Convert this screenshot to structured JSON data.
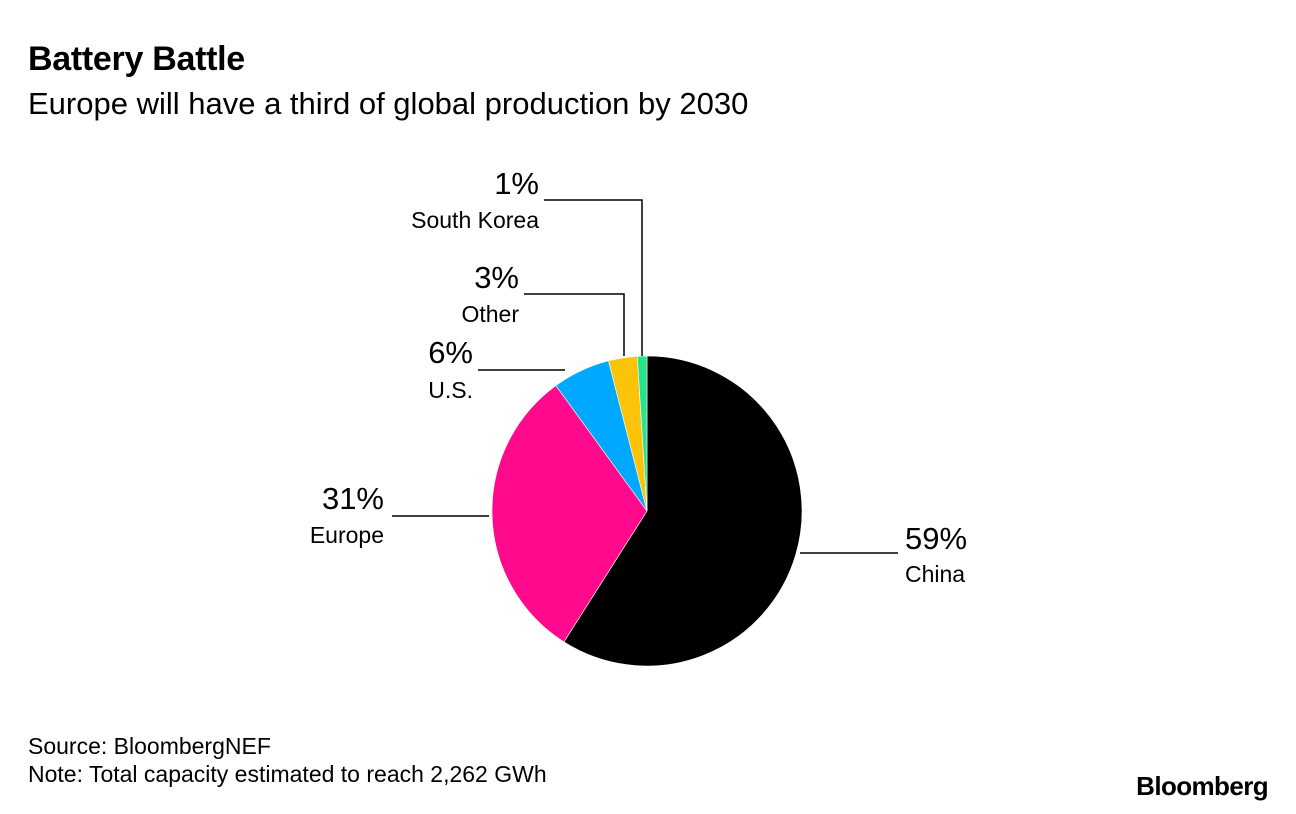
{
  "title": "Battery Battle",
  "subtitle": "Europe will have a third of global production by 2030",
  "chart_data": {
    "type": "pie",
    "title": "Battery Battle",
    "subtitle": "Europe will have a third of global production by 2030",
    "start": "12 o'clock, clockwise",
    "slices": [
      {
        "name": "China",
        "value": 59,
        "label": "59%",
        "color": "#000000"
      },
      {
        "name": "Europe",
        "value": 31,
        "label": "31%",
        "color": "#ff0a8c"
      },
      {
        "name": "U.S.",
        "value": 6,
        "label": "6%",
        "color": "#00a8ff"
      },
      {
        "name": "Other",
        "value": 3,
        "label": "3%",
        "color": "#fcc30b"
      },
      {
        "name": "South Korea",
        "value": 1,
        "label": "1%",
        "color": "#27e38c"
      }
    ]
  },
  "footer": {
    "source": "Source: BloombergNEF",
    "note": "Note: Total capacity estimated to reach 2,262 GWh",
    "brand": "Bloomberg"
  }
}
